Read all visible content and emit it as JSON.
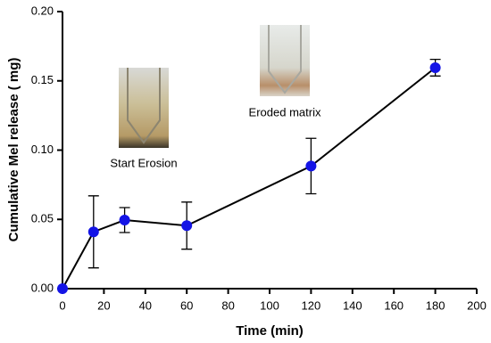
{
  "chart_data": {
    "type": "line",
    "xlabel": "Time (min)",
    "ylabel": "Cumulative Mel release ( mg)",
    "x": [
      0,
      15,
      30,
      60,
      120,
      180
    ],
    "series": [
      {
        "color": "#1414e6",
        "values": [
          0,
          0.041,
          0.0495,
          0.0455,
          0.0885,
          0.1595
        ],
        "errors": [
          0,
          0.026,
          0.009,
          0.017,
          0.02,
          0.006
        ]
      }
    ],
    "xlim": [
      0,
      200
    ],
    "xticks": [
      0,
      20,
      40,
      60,
      80,
      100,
      120,
      140,
      160,
      180,
      200
    ],
    "ylim": [
      0,
      0.2
    ],
    "yticks": [
      {
        "value": 0,
        "label": "0.00"
      },
      {
        "value": 0.05,
        "label": "0.05"
      },
      {
        "value": 0.1,
        "label": "0.10"
      },
      {
        "value": 0.15,
        "label": "0.15"
      },
      {
        "value": 0.2,
        "label": "0.20"
      }
    ],
    "annotations": [
      "Start Erosion",
      "Eroded matrix"
    ]
  }
}
